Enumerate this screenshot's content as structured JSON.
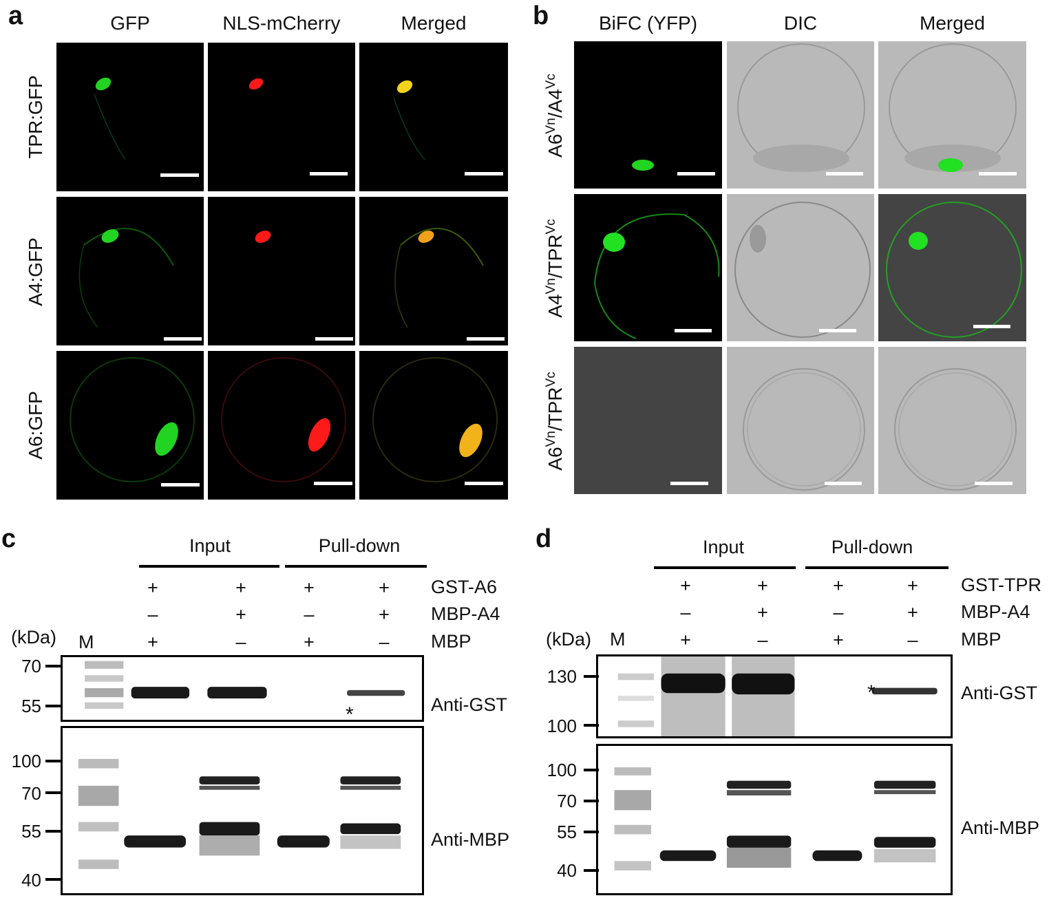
{
  "panel_a": {
    "label": "a",
    "columns": [
      "GFP",
      "NLS-mCherry",
      "Merged"
    ],
    "rows": [
      "TPR:GFP",
      "A4:GFP",
      "A6:GFP"
    ],
    "colors": {
      "gfp": "#22d422",
      "mcherry": "#ff1a1a",
      "merged": "#f2d21a"
    }
  },
  "panel_b": {
    "label": "b",
    "columns": [
      "BiFC (YFP)",
      "DIC",
      "Merged"
    ],
    "rows": [
      {
        "a": "A6",
        "a_sup": "Vn",
        "sep": "/",
        "b": "A4",
        "b_sup": "Vc"
      },
      {
        "a": "A4",
        "a_sup": "Vn",
        "sep": "/",
        "b": "TPR",
        "b_sup": "Vc"
      },
      {
        "a": "A6",
        "a_sup": "Vn",
        "sep": "/",
        "b": "TPR",
        "b_sup": "Vc"
      }
    ]
  },
  "panel_c": {
    "label": "c",
    "groups": [
      "Input",
      "Pull-down"
    ],
    "conditions": [
      {
        "name": "GST-A6",
        "lanes": [
          "+",
          "+",
          "+",
          "+"
        ]
      },
      {
        "name": "MBP-A4",
        "lanes": [
          "–",
          "+",
          "–",
          "+"
        ]
      },
      {
        "name": "MBP",
        "lanes": [
          "+",
          "–",
          "+",
          "–"
        ]
      }
    ],
    "kda_label": "(kDa)",
    "marker_label": "M",
    "blot_top": {
      "antibody": "Anti-GST",
      "markers": [
        "70",
        "55"
      ],
      "star": "*"
    },
    "blot_bottom": {
      "antibody": "Anti-MBP",
      "markers": [
        "100",
        "70",
        "55",
        "40"
      ]
    }
  },
  "panel_d": {
    "label": "d",
    "groups": [
      "Input",
      "Pull-down"
    ],
    "conditions": [
      {
        "name": "GST-TPR",
        "lanes": [
          "+",
          "+",
          "+",
          "+"
        ]
      },
      {
        "name": "MBP-A4",
        "lanes": [
          "–",
          "+",
          "–",
          "+"
        ]
      },
      {
        "name": "MBP",
        "lanes": [
          "+",
          "–",
          "+",
          "–"
        ]
      }
    ],
    "kda_label": "(kDa)",
    "marker_label": "M",
    "blot_top": {
      "antibody": "Anti-GST",
      "markers": [
        "130",
        "100"
      ],
      "star": "*"
    },
    "blot_bottom": {
      "antibody": "Anti-MBP",
      "markers": [
        "100",
        "70",
        "55",
        "40"
      ]
    }
  }
}
